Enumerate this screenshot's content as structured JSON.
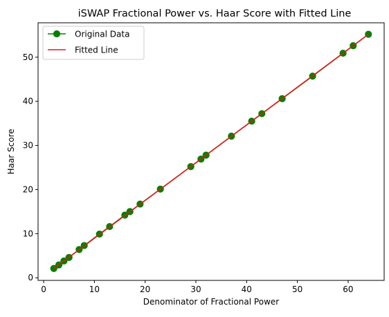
{
  "chart_data": {
    "type": "line",
    "title": "iSWAP Fractional Power vs. Haar Score with Fitted Line",
    "xlabel": "Denominator of Fractional Power",
    "ylabel": "Haar Score",
    "xlim": [
      -1.1,
      67.1
    ],
    "ylim": [
      -0.6,
      57.8
    ],
    "xticks": [
      0,
      10,
      20,
      30,
      40,
      50,
      60
    ],
    "yticks": [
      0,
      10,
      20,
      30,
      40,
      50
    ],
    "grid": false,
    "legend_position": "top-left",
    "series": [
      {
        "name": "Original Data",
        "kind": "line-with-markers",
        "color": "#008000",
        "x": [
          2,
          3,
          4,
          5,
          7,
          8,
          11,
          13,
          16,
          17,
          19,
          23,
          29,
          31,
          32,
          37,
          41,
          43,
          47,
          53,
          59,
          61,
          64
        ],
        "y": [
          2.1,
          2.9,
          3.8,
          4.6,
          6.4,
          7.3,
          9.9,
          11.6,
          14.2,
          15.0,
          16.7,
          20.1,
          25.2,
          26.9,
          27.8,
          32.1,
          35.5,
          37.2,
          40.6,
          45.7,
          50.9,
          52.6,
          55.2
        ]
      },
      {
        "name": "Fitted Line",
        "kind": "line",
        "color": "#e31a1c",
        "x": [
          2,
          64
        ],
        "y": [
          2.1,
          55.2
        ]
      }
    ]
  }
}
